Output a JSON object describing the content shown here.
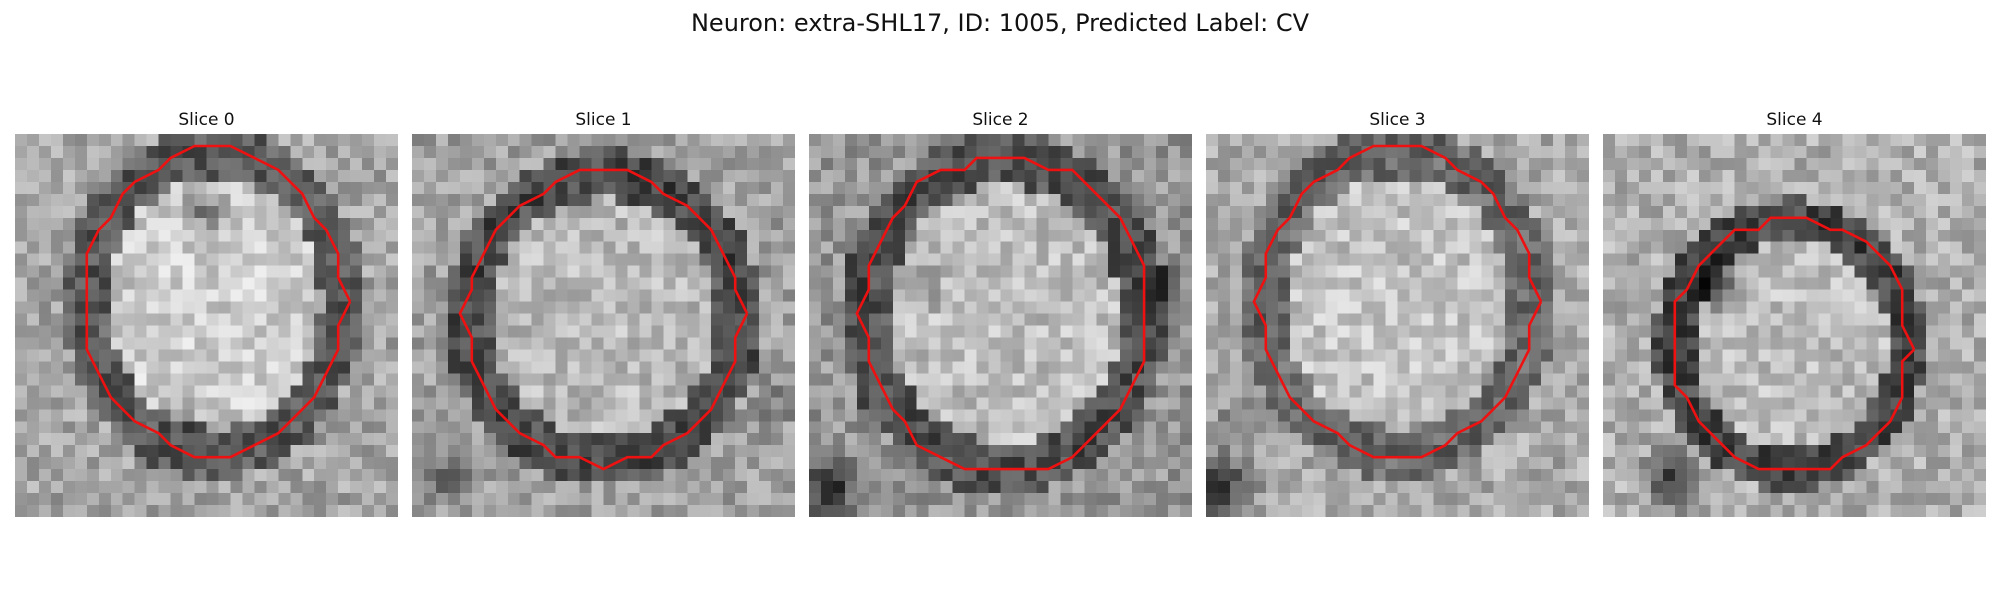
{
  "figure": {
    "title": "Neuron: extra-SHL17, ID: 1005, Predicted Label: CV"
  },
  "slices": [
    {
      "label": "Slice 0",
      "cell_color": "#ee1111"
    },
    {
      "label": "Slice 1",
      "cell_color": "#ee1111"
    },
    {
      "label": "Slice 2",
      "cell_color": "#ee1111"
    },
    {
      "label": "Slice 3",
      "cell_color": "#ee1111"
    },
    {
      "label": "Slice 4",
      "cell_color": "#ee1111"
    }
  ]
}
